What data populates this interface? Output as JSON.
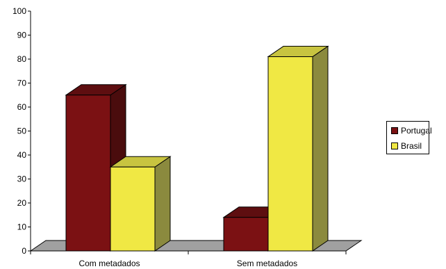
{
  "chart_data": {
    "type": "bar",
    "style": "3d-clustered-column",
    "categories": [
      "Com metadados",
      "Sem metadados"
    ],
    "series": [
      {
        "name": "Portugal",
        "values": [
          65,
          14
        ],
        "color": "#7b1113",
        "side_color": "#4a0c0d",
        "top_color": "#5e0e10"
      },
      {
        "name": "Brasil",
        "values": [
          35,
          81
        ],
        "color": "#f0e844",
        "side_color": "#8b8a3e",
        "top_color": "#c8c440"
      }
    ],
    "ylim": [
      0,
      100
    ],
    "yticks": [
      0,
      10,
      20,
      30,
      40,
      50,
      60,
      70,
      80,
      90,
      100
    ],
    "grid": false,
    "floor_color": "#a0a0a0",
    "legend_position": "right"
  }
}
